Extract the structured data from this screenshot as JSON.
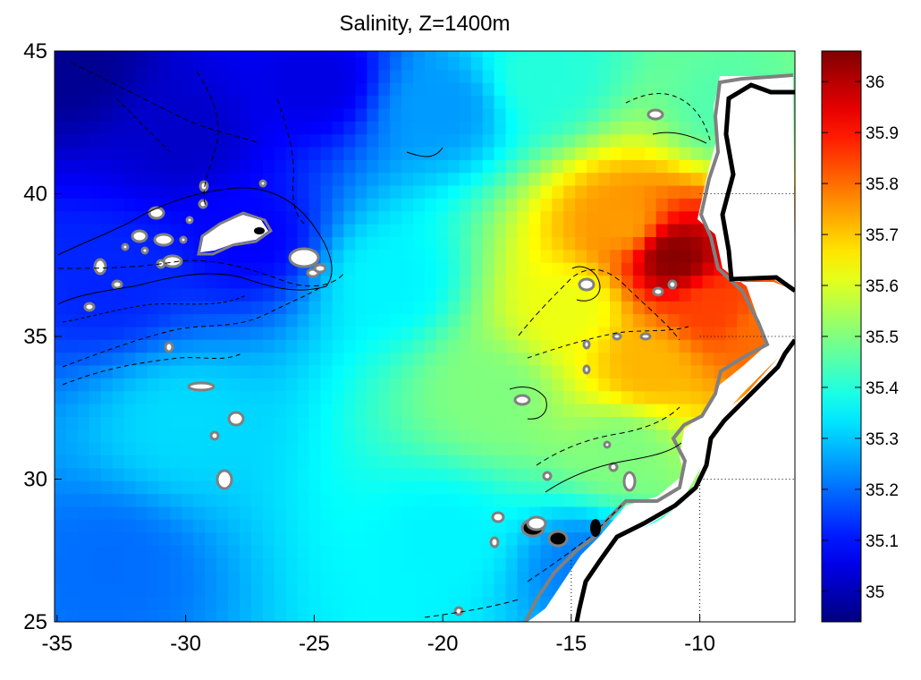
{
  "chart_data": {
    "type": "heatmap",
    "title": "Salinity, Z=1400m",
    "xlabel": "",
    "ylabel": "",
    "xlim": [
      -35.1,
      -6.3
    ],
    "ylim": [
      25,
      45
    ],
    "xticks": [
      -35,
      -30,
      -25,
      -20,
      -15,
      -10
    ],
    "xtick_labels": [
      "-35",
      "-30",
      "-25",
      "-20",
      "-15",
      "-10"
    ],
    "yticks": [
      25,
      30,
      35,
      40,
      45
    ],
    "ytick_labels": [
      "25",
      "30",
      "35",
      "40",
      "45"
    ],
    "colormap": "jet",
    "color_range": [
      34.94,
      36.06
    ],
    "colorbar_ticks": [
      35,
      35.1,
      35.2,
      35.3,
      35.4,
      35.5,
      35.6,
      35.7,
      35.8,
      35.9,
      36
    ],
    "colorbar_labels": [
      "35",
      "35.1",
      "35.2",
      "35.3",
      "35.4",
      "35.5",
      "35.6",
      "35.7",
      "35.8",
      "35.9",
      "36"
    ],
    "grid": "dotted lines over land only",
    "salinity_field_estimates": [
      {
        "lon": -34.5,
        "lat": 44.5,
        "value": 34.96
      },
      {
        "lon": -30,
        "lat": 42,
        "value": 35.02
      },
      {
        "lon": -27.5,
        "lat": 38.5,
        "value": 35.08
      },
      {
        "lon": -33,
        "lat": 37,
        "value": 35.12
      },
      {
        "lon": -25,
        "lat": 44,
        "value": 35.05
      },
      {
        "lon": -20,
        "lat": 43,
        "value": 35.25
      },
      {
        "lon": -16,
        "lat": 44,
        "value": 35.4
      },
      {
        "lon": -22,
        "lat": 37,
        "value": 35.35
      },
      {
        "lon": -30,
        "lat": 32,
        "value": 35.32
      },
      {
        "lon": -33,
        "lat": 27,
        "value": 35.2
      },
      {
        "lon": -20,
        "lat": 28,
        "value": 35.35
      },
      {
        "lon": -18,
        "lat": 33,
        "value": 35.5
      },
      {
        "lon": -15,
        "lat": 36,
        "value": 35.62
      },
      {
        "lon": -13,
        "lat": 39,
        "value": 35.75
      },
      {
        "lon": -11,
        "lat": 37.8,
        "value": 36.05
      },
      {
        "lon": -9.5,
        "lat": 36,
        "value": 35.85
      },
      {
        "lon": -12,
        "lat": 34,
        "value": 35.72
      },
      {
        "lon": -13,
        "lat": 31,
        "value": 35.5
      },
      {
        "lon": -14.5,
        "lat": 27,
        "value": 35.22
      },
      {
        "lon": -7.5,
        "lat": 35.2,
        "value": 35.8
      },
      {
        "lon": -9,
        "lat": 43,
        "value": 35.45
      }
    ]
  },
  "colors": {
    "land_outline": "#000000",
    "coast_contour": "#808080",
    "bathymetry_contours": "#000000",
    "land_fill": "#ffffff"
  }
}
